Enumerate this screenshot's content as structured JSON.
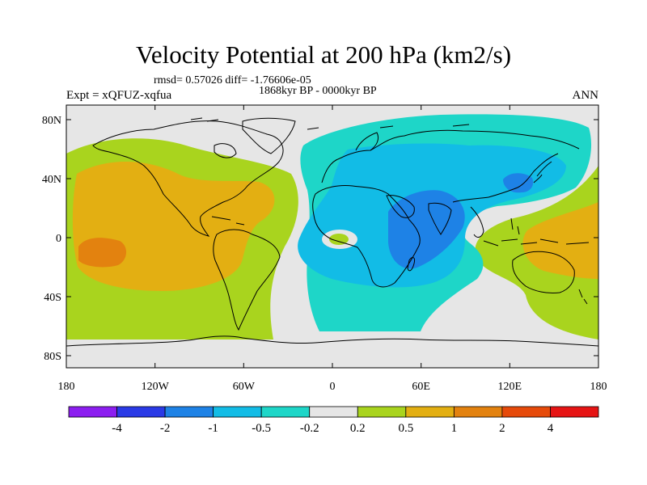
{
  "header": {
    "title": "Velocity Potential at 200 hPa (km2/s)",
    "stats": "rmsd= 0.57026 diff= -1.76606e-05",
    "period": "1868kyr BP - 0000kyr BP",
    "experiment": "Expt = xQFUZ-xqfua",
    "season": "ANN"
  },
  "axes": {
    "x_ticks": [
      "180",
      "120W",
      "60W",
      "0",
      "60E",
      "120E",
      "180"
    ],
    "y_ticks": [
      "80N",
      "40N",
      "0",
      "40S",
      "80S"
    ]
  },
  "colorbar": {
    "colors": [
      "#8c1ef0",
      "#2a3ae6",
      "#1e82e6",
      "#12bce6",
      "#1ed6c8",
      "#e6e6e6",
      "#a9d41e",
      "#e3af12",
      "#e3820f",
      "#e64a0a",
      "#e61414"
    ],
    "labels": [
      "-4",
      "-2",
      "-1",
      "-0.5",
      "-0.2",
      "0.2",
      "0.5",
      "1",
      "2",
      "4"
    ]
  },
  "fill_colors": {
    "background": "#e6e6e6",
    "neg_weak": "#1ed6c8",
    "neg_mid": "#12bce6",
    "neg_strong": "#1e82e6",
    "pos_weak": "#a9d41e",
    "pos_mid": "#e3af12",
    "pos_strong": "#e3820f"
  }
}
